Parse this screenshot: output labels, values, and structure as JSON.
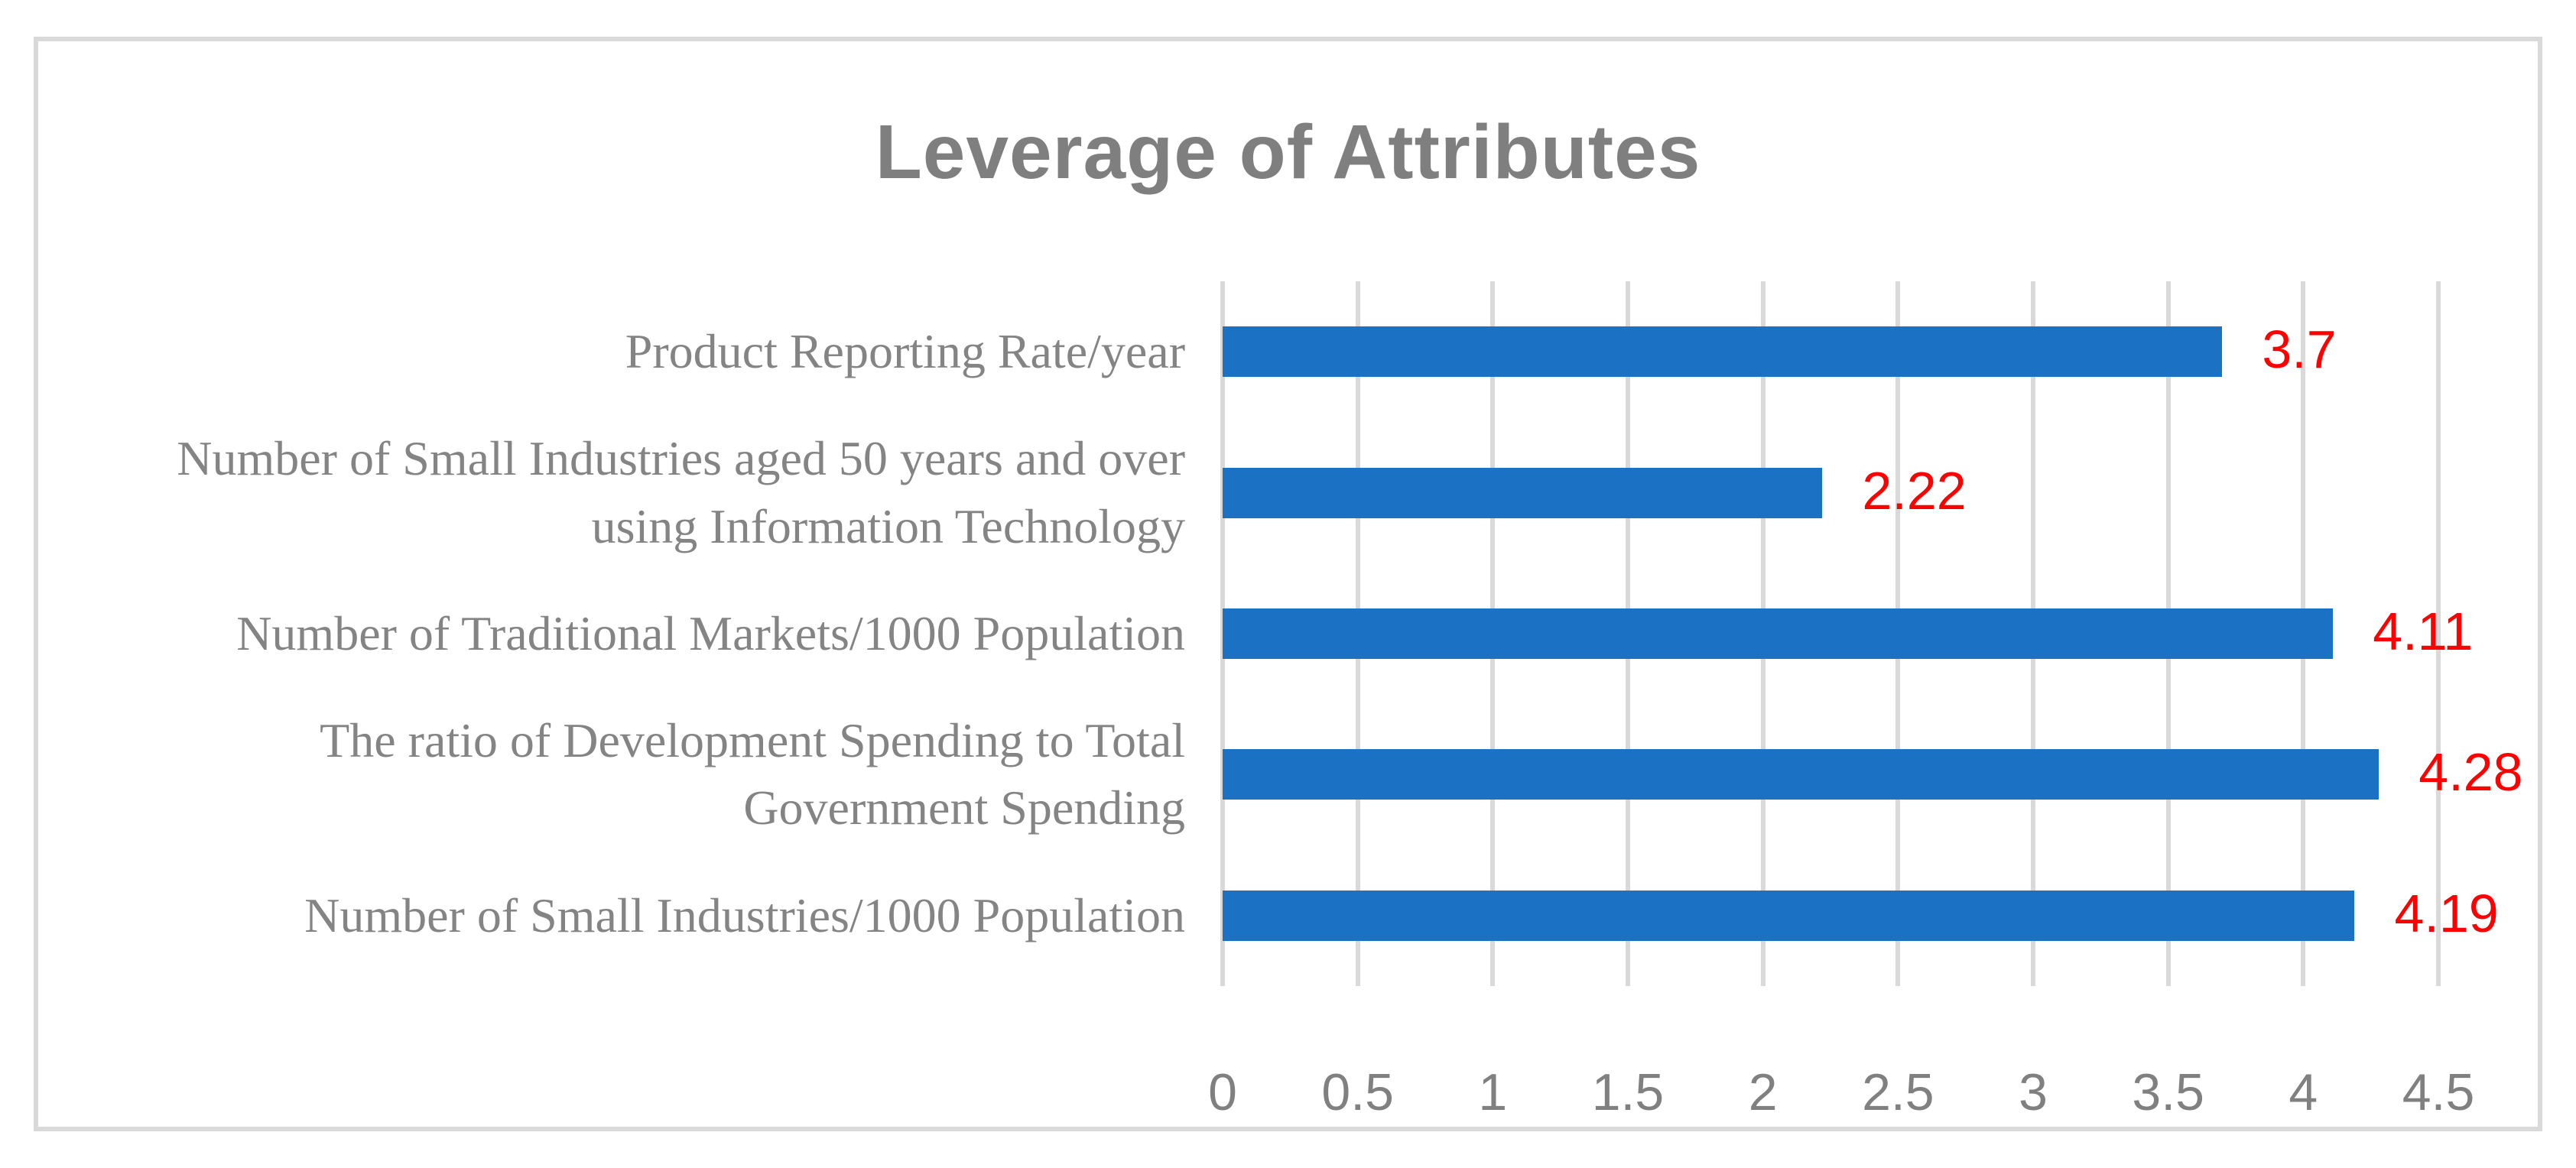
{
  "chart_data": {
    "type": "bar",
    "orientation": "horizontal",
    "title": "Leverage of Attributes",
    "categories": [
      "Product Reporting Rate/year",
      "Number of Small Industries aged 50 years and over using Information Technology",
      "Number of Traditional Markets/1000 Population",
      "The ratio of Development Spending to Total Government Spending",
      "Number of Small Industries/1000 Population"
    ],
    "values": [
      3.7,
      2.22,
      4.11,
      4.28,
      4.19
    ],
    "value_labels": [
      "3.7",
      "2.22",
      "4.11",
      "4.28",
      "4.19"
    ],
    "xlabel": "",
    "ylabel": "",
    "xlim": [
      0,
      4.5
    ],
    "xticks": [
      0,
      0.5,
      1,
      1.5,
      2,
      2.5,
      3,
      3.5,
      4,
      4.5
    ],
    "xtick_labels": [
      "0",
      "0.5",
      "1",
      "1.5",
      "2",
      "2.5",
      "3",
      "3.5",
      "4",
      "4.5"
    ],
    "grid": "vertical-gridlines-on",
    "legend": "none",
    "colors": {
      "bar": "#1b72c5",
      "value_label": "#ff0000",
      "gridline": "#d9d9d9",
      "axis_text": "#808080",
      "category_text": "#848484",
      "title_text": "#7f7f7f",
      "frame_border": "#d9d9d9",
      "background": "#ffffff"
    }
  }
}
